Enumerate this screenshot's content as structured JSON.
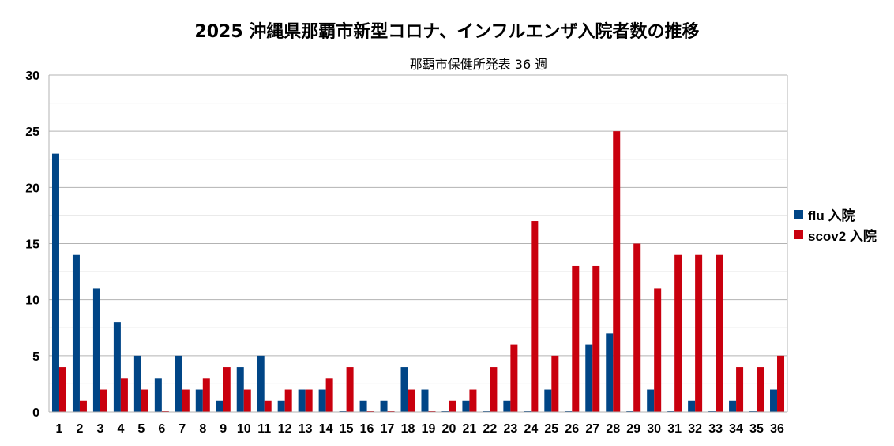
{
  "chart_data": {
    "type": "bar",
    "title": "2025 沖縄県那覇市新型コロナ、インフルエンザ入院者数の推移",
    "subtitle": "那覇市保健所発表 36 週",
    "xlabel": "",
    "ylabel": "",
    "ylim": [
      0,
      30
    ],
    "yticks": [
      0,
      5,
      10,
      15,
      20,
      25,
      30
    ],
    "grid": true,
    "legend_position": "right",
    "categories": [
      "1",
      "2",
      "3",
      "4",
      "5",
      "6",
      "7",
      "8",
      "9",
      "10",
      "11",
      "12",
      "13",
      "14",
      "15",
      "16",
      "17",
      "18",
      "19",
      "20",
      "21",
      "22",
      "23",
      "24",
      "25",
      "26",
      "27",
      "28",
      "29",
      "30",
      "31",
      "32",
      "33",
      "34",
      "35",
      "36"
    ],
    "series": [
      {
        "name": "flu 入院",
        "color": "#004586",
        "values": [
          23,
          14,
          11,
          8,
          5,
          3,
          5,
          2,
          1,
          4,
          5,
          1,
          2,
          2,
          0,
          1,
          1,
          4,
          2,
          0,
          1,
          0,
          1,
          0,
          2,
          0,
          6,
          7,
          0,
          2,
          0,
          1,
          0,
          1,
          0,
          2
        ]
      },
      {
        "name": "scov2 入院",
        "color": "#c9000e",
        "values": [
          4,
          1,
          2,
          3,
          2,
          0,
          2,
          3,
          4,
          2,
          1,
          2,
          2,
          3,
          4,
          0,
          0,
          2,
          0,
          1,
          2,
          4,
          6,
          17,
          5,
          13,
          13,
          25,
          15,
          11,
          14,
          14,
          14,
          4,
          4,
          5
        ]
      }
    ]
  }
}
